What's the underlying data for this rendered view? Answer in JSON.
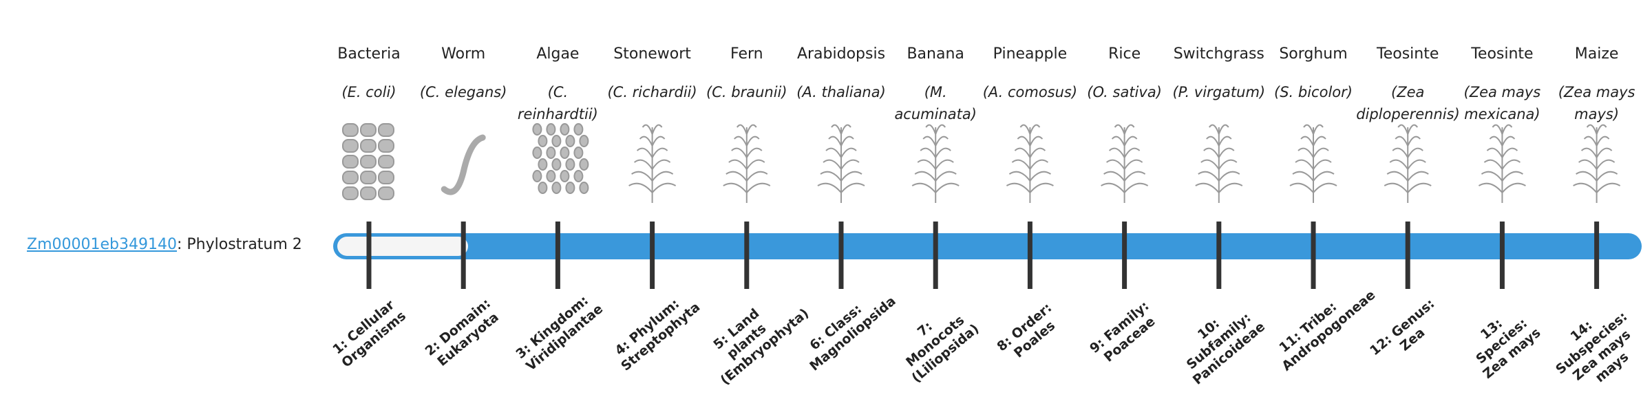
{
  "gene": {
    "id": "Zm00001eb349140",
    "label": ": Phylostratum 2"
  },
  "strata": [
    {
      "name": "Bacteria",
      "species": "(E. coli)",
      "stratum": "1: Cellular Organisms"
    },
    {
      "name": "Worm",
      "species": "(C. elegans)",
      "stratum": "2: Domain: Eukaryota"
    },
    {
      "name": "Algae",
      "species": "(C. reinhardtii)",
      "stratum": "3: Kingdom: Viridiplantae"
    },
    {
      "name": "Stonewort",
      "species": "(C. richardii)",
      "stratum": "4: Phylum: Streptophyta"
    },
    {
      "name": "Fern",
      "species": "(C. braunii)",
      "stratum": "5: Land plants (Embryophyta)"
    },
    {
      "name": "Arabidopsis",
      "species": "(A. thaliana)",
      "stratum": "6: Class: Magnoliopsida"
    },
    {
      "name": "Banana",
      "species": "(M. acuminata)",
      "stratum": "7: Monocots (Liliopsida)"
    },
    {
      "name": "Pineapple",
      "species": "(A. comosus)",
      "stratum": "8: Order: Poales"
    },
    {
      "name": "Rice",
      "species": "(O. sativa)",
      "stratum": "9: Family: Poaceae"
    },
    {
      "name": "Switchgrass",
      "species": "(P. virgatum)",
      "stratum": "10: Subfamily: Panicoideae"
    },
    {
      "name": "Sorghum",
      "species": "(S. bicolor)",
      "stratum": "11: Tribe: Andropogoneae"
    },
    {
      "name": "Teosinte",
      "species": "(Zea diploperennis)",
      "stratum": "12: Genus: Zea"
    },
    {
      "name": "Teosinte",
      "species": "(Zea mays mexicana)",
      "stratum": "13: Species: Zea mays"
    },
    {
      "name": "Maize",
      "species": "(Zea mays mays)",
      "stratum": "14: Subspecies: Zea mays mays"
    }
  ]
}
